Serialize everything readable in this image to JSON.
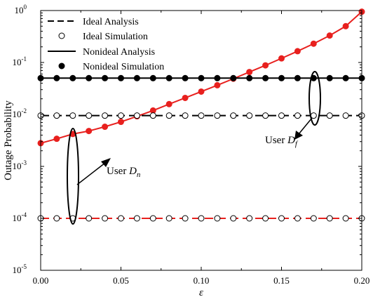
{
  "chart_data": {
    "type": "line",
    "xlabel": "ε",
    "ylabel": "Outage Probability",
    "xlim": [
      0,
      0.2
    ],
    "ylim": [
      1e-05,
      1
    ],
    "yscale": "log",
    "grid": false,
    "legend_position": "top-left",
    "x_ticks": [
      "0.00",
      "0.05",
      "0.10",
      "0.15",
      "0.20"
    ],
    "y_ticks": [
      {
        "base": "10",
        "exp": "0"
      },
      {
        "base": "10",
        "exp": "-1"
      },
      {
        "base": "10",
        "exp": "-2"
      },
      {
        "base": "10",
        "exp": "-3"
      },
      {
        "base": "10",
        "exp": "-4"
      },
      {
        "base": "10",
        "exp": "-5"
      }
    ],
    "legend": [
      {
        "label": "Ideal Analysis",
        "style": "dashed-line"
      },
      {
        "label": "Ideal Simulation",
        "style": "open-circle"
      },
      {
        "label": "Nonideal Analysis",
        "style": "solid-line"
      },
      {
        "label": "Nonideal Simulation",
        "style": "filled-circle"
      }
    ],
    "annotations": [
      {
        "text": "User ",
        "subscript_var": "D",
        "subscript": "n"
      },
      {
        "text": "User ",
        "subscript_var": "D",
        "subscript": "f"
      }
    ],
    "colors": {
      "user_dn": "#e8201e",
      "user_df": "#000000"
    },
    "sim_x": [
      0.0,
      0.01,
      0.02,
      0.03,
      0.04,
      0.05,
      0.06,
      0.07,
      0.08,
      0.09,
      0.1,
      0.11,
      0.12,
      0.13,
      0.14,
      0.15,
      0.16,
      0.17,
      0.18,
      0.19,
      0.2
    ],
    "series": [
      {
        "group": "Dn",
        "kind": "ideal",
        "x": [
          0,
          0.2
        ],
        "y": [
          0.0001,
          0.0001
        ]
      },
      {
        "group": "Dn",
        "kind": "nonideal",
        "x": [
          0.0,
          0.01,
          0.02,
          0.03,
          0.04,
          0.05,
          0.06,
          0.07,
          0.08,
          0.09,
          0.1,
          0.11,
          0.12,
          0.13,
          0.14,
          0.15,
          0.16,
          0.17,
          0.18,
          0.19,
          0.2
        ],
        "y": [
          0.0028,
          0.0034,
          0.0042,
          0.0048,
          0.0058,
          0.0072,
          0.0092,
          0.0119,
          0.0158,
          0.0208,
          0.0275,
          0.0365,
          0.0487,
          0.0655,
          0.088,
          0.12,
          0.165,
          0.23,
          0.33,
          0.5,
          0.95
        ]
      },
      {
        "group": "Df",
        "kind": "ideal",
        "x": [
          0,
          0.2
        ],
        "y": [
          0.0095,
          0.0095
        ]
      },
      {
        "group": "Df",
        "kind": "nonideal",
        "x": [
          0,
          0.2
        ],
        "y": [
          0.05,
          0.05
        ]
      }
    ]
  }
}
